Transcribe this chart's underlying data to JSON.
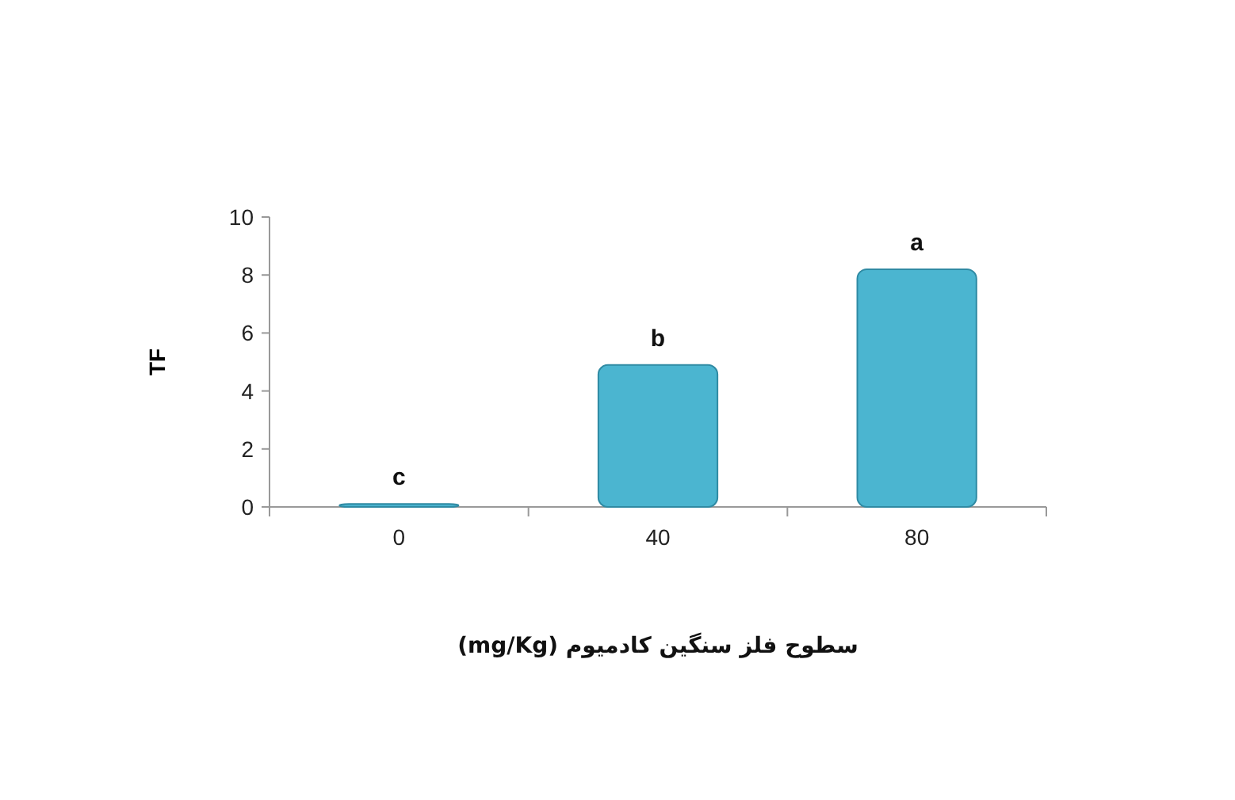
{
  "chart_data": {
    "type": "bar",
    "categories": [
      "0",
      "40",
      "80"
    ],
    "values": [
      0.1,
      4.9,
      8.2
    ],
    "color": "#4bb5d0",
    "xlabel": "سطوح فلز سنگین کادمیوم (mg/Kg)",
    "ylabel": "TF",
    "ylim": [
      0,
      10
    ],
    "yticks": [
      0,
      2,
      4,
      6,
      8,
      10
    ],
    "annotations": [
      {
        "text": "c",
        "x": "0",
        "y": 0.1
      },
      {
        "text": "b",
        "x": "40",
        "y": 4.9
      },
      {
        "text": "a",
        "x": "80",
        "y": 8.2
      }
    ]
  }
}
